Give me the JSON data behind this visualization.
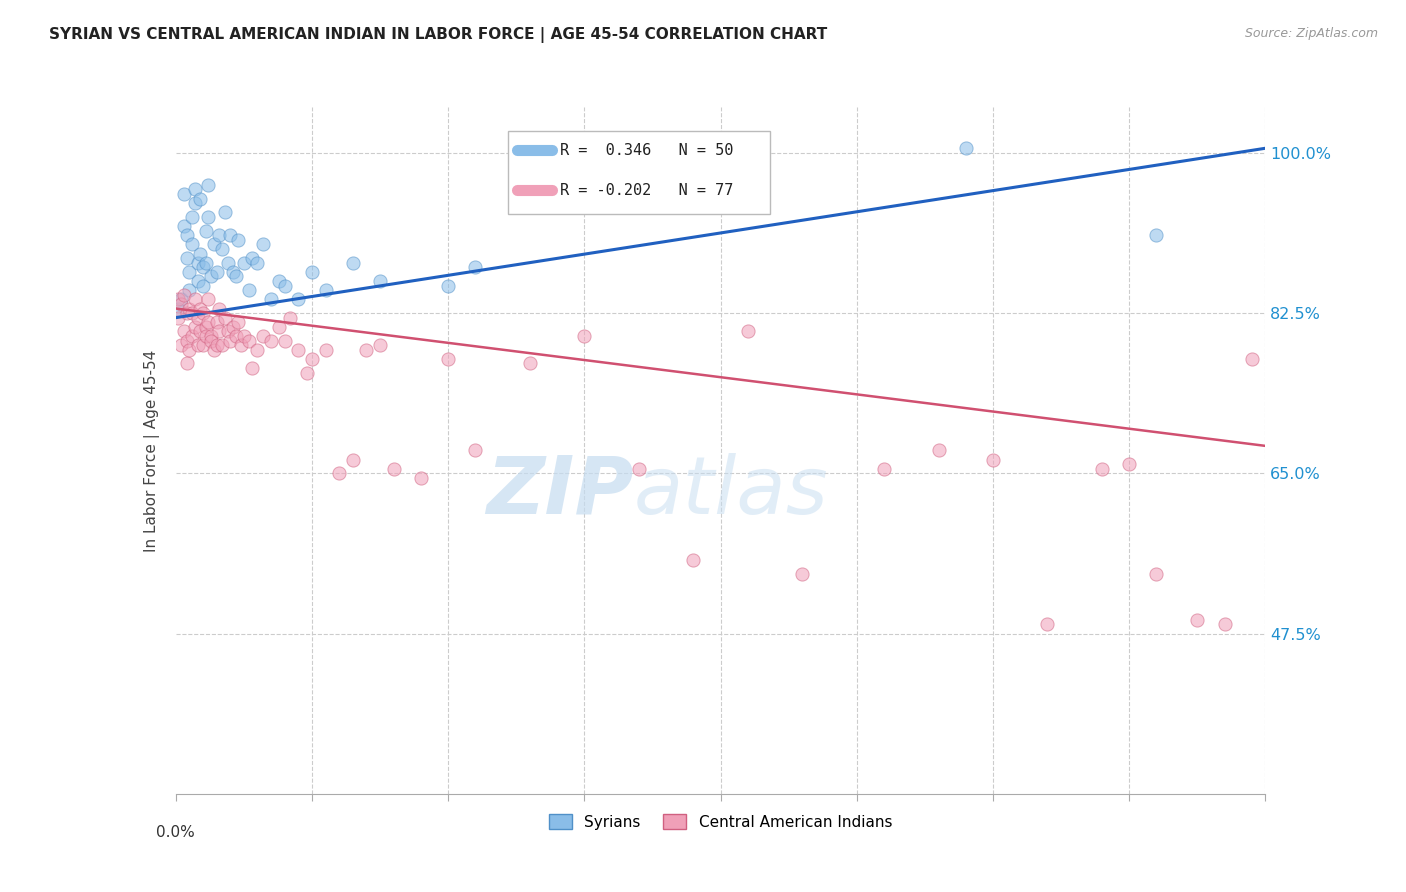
{
  "title": "SYRIAN VS CENTRAL AMERICAN INDIAN IN LABOR FORCE | AGE 45-54 CORRELATION CHART",
  "source": "Source: ZipAtlas.com",
  "ylabel": "In Labor Force | Age 45-54",
  "ytick_vals": [
    100.0,
    82.5,
    65.0,
    47.5
  ],
  "ytick_labels": [
    "100.0%",
    "82.5%",
    "65.0%",
    "47.5%"
  ],
  "xmin": 0.0,
  "xmax": 0.4,
  "ymin": 30.0,
  "ymax": 105.0,
  "syrian_color": "#8ABDE8",
  "syrian_edge_color": "#5090C8",
  "central_color": "#F0A0B8",
  "central_edge_color": "#D06080",
  "blue_line_color": "#2060C0",
  "pink_line_color": "#D05070",
  "legend_R_syrian": "R =  0.346",
  "legend_N_syrian": "N = 50",
  "legend_R_central": "R = -0.202",
  "legend_N_central": "N = 77",
  "legend_label_syrian": "Syrians",
  "legend_label_central": "Central American Indians",
  "watermark_zip": "ZIP",
  "watermark_atlas": "atlas",
  "marker_size": 90,
  "alpha": 0.55,
  "blue_line_y0": 82.0,
  "blue_line_y1": 100.5,
  "pink_line_y0": 83.0,
  "pink_line_y1": 68.0,
  "syrian_x": [
    0.001,
    0.002,
    0.003,
    0.003,
    0.004,
    0.004,
    0.005,
    0.005,
    0.006,
    0.006,
    0.007,
    0.007,
    0.008,
    0.008,
    0.009,
    0.009,
    0.01,
    0.01,
    0.011,
    0.011,
    0.012,
    0.012,
    0.013,
    0.014,
    0.015,
    0.016,
    0.017,
    0.018,
    0.019,
    0.02,
    0.021,
    0.022,
    0.023,
    0.025,
    0.027,
    0.028,
    0.03,
    0.032,
    0.035,
    0.038,
    0.04,
    0.045,
    0.05,
    0.055,
    0.065,
    0.075,
    0.1,
    0.11,
    0.29,
    0.36
  ],
  "syrian_y": [
    83.0,
    84.0,
    95.5,
    92.0,
    91.0,
    88.5,
    85.0,
    87.0,
    93.0,
    90.0,
    96.0,
    94.5,
    86.0,
    88.0,
    95.0,
    89.0,
    87.5,
    85.5,
    91.5,
    88.0,
    96.5,
    93.0,
    86.5,
    90.0,
    87.0,
    91.0,
    89.5,
    93.5,
    88.0,
    91.0,
    87.0,
    86.5,
    90.5,
    88.0,
    85.0,
    88.5,
    88.0,
    90.0,
    84.0,
    86.0,
    85.5,
    84.0,
    87.0,
    85.0,
    88.0,
    86.0,
    85.5,
    87.5,
    100.5,
    91.0
  ],
  "central_x": [
    0.001,
    0.001,
    0.002,
    0.002,
    0.003,
    0.003,
    0.004,
    0.004,
    0.004,
    0.005,
    0.005,
    0.006,
    0.006,
    0.007,
    0.007,
    0.008,
    0.008,
    0.009,
    0.009,
    0.01,
    0.01,
    0.011,
    0.011,
    0.012,
    0.012,
    0.013,
    0.013,
    0.014,
    0.015,
    0.015,
    0.016,
    0.016,
    0.017,
    0.018,
    0.019,
    0.02,
    0.021,
    0.022,
    0.023,
    0.024,
    0.025,
    0.027,
    0.028,
    0.03,
    0.032,
    0.035,
    0.038,
    0.04,
    0.042,
    0.045,
    0.048,
    0.05,
    0.055,
    0.06,
    0.065,
    0.07,
    0.075,
    0.08,
    0.09,
    0.1,
    0.11,
    0.13,
    0.15,
    0.17,
    0.19,
    0.21,
    0.23,
    0.26,
    0.28,
    0.3,
    0.32,
    0.34,
    0.35,
    0.36,
    0.375,
    0.385,
    0.395
  ],
  "central_y": [
    84.0,
    82.0,
    83.5,
    79.0,
    84.5,
    80.5,
    82.5,
    79.5,
    77.0,
    83.0,
    78.5,
    82.5,
    80.0,
    84.0,
    81.0,
    82.0,
    79.0,
    83.0,
    80.5,
    82.5,
    79.0,
    81.0,
    80.0,
    84.0,
    81.5,
    80.0,
    79.5,
    78.5,
    81.5,
    79.0,
    83.0,
    80.5,
    79.0,
    82.0,
    80.5,
    79.5,
    81.0,
    80.0,
    81.5,
    79.0,
    80.0,
    79.5,
    76.5,
    78.5,
    80.0,
    79.5,
    81.0,
    79.5,
    82.0,
    78.5,
    76.0,
    77.5,
    78.5,
    65.0,
    66.5,
    78.5,
    79.0,
    65.5,
    64.5,
    77.5,
    67.5,
    77.0,
    80.0,
    65.5,
    55.5,
    80.5,
    54.0,
    65.5,
    67.5,
    66.5,
    48.5,
    65.5,
    66.0,
    54.0,
    49.0,
    48.5,
    77.5
  ]
}
